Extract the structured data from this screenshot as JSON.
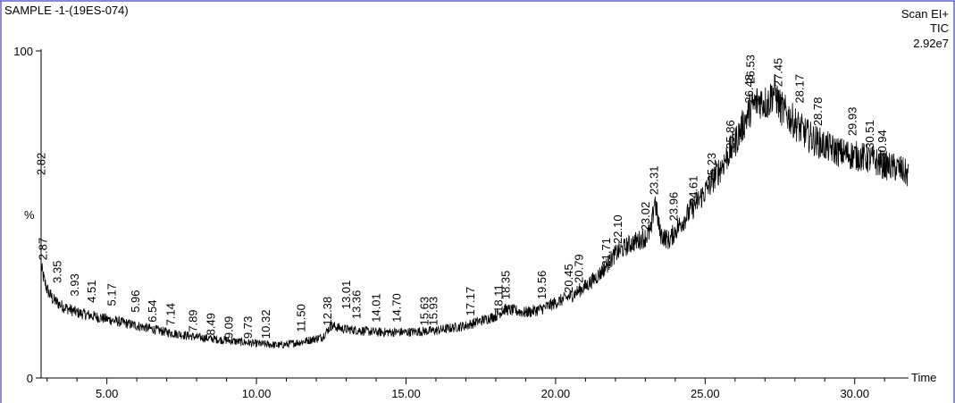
{
  "header": {
    "sample_label": "SAMPLE -1-(19ES-074)",
    "scan_label": "Scan EI+",
    "tic_label": "TIC",
    "intensity_label": "2.92e7"
  },
  "chart_data": {
    "type": "line",
    "title": "",
    "xlabel": "Time",
    "ylabel": "%",
    "xlim": [
      2.8,
      31.8
    ],
    "ylim": [
      0,
      100
    ],
    "x_ticks": [
      5.0,
      10.0,
      15.0,
      20.0,
      25.0,
      30.0
    ],
    "x_tick_labels": [
      "5.00",
      "10.00",
      "15.00",
      "20.00",
      "25.00",
      "30.00"
    ],
    "y_tick_labels": [
      "0",
      "100"
    ],
    "grid": false,
    "legend": "none",
    "line_color": "#000000",
    "frame_color": "#4040c0",
    "series": [
      {
        "x": [
          2.8,
          2.9,
          3.0,
          3.2,
          3.5,
          4.0,
          4.5,
          5.0,
          6.0,
          7.0,
          8.0,
          9.0,
          10.0,
          10.8,
          11.5,
          12.2,
          12.5,
          12.9,
          13.5,
          14.0,
          15.0,
          16.0,
          17.0,
          18.0,
          18.3,
          18.7,
          19.0,
          19.5,
          20.0,
          20.5,
          21.0,
          21.5,
          22.0,
          22.5,
          23.0,
          23.2,
          23.31,
          23.5,
          23.8,
          24.0,
          24.5,
          25.0,
          25.5,
          26.0,
          26.3,
          26.5,
          26.8,
          27.1,
          27.3,
          27.5,
          27.8,
          28.2,
          28.6,
          29.0,
          29.5,
          30.0,
          30.5,
          31.0,
          31.5,
          31.8
        ],
        "y": [
          34,
          30,
          27,
          24,
          22,
          20,
          19,
          18,
          16,
          14,
          12.5,
          11.5,
          10.5,
          10,
          11,
          12.5,
          16,
          15,
          14.5,
          14,
          14,
          14.5,
          16,
          19,
          21,
          20.5,
          20,
          21,
          23,
          25,
          28,
          32,
          38,
          41,
          43,
          45,
          55,
          44,
          42,
          45,
          51,
          57,
          64,
          72,
          78,
          82,
          85,
          84,
          88,
          83,
          80,
          76,
          73,
          71,
          69,
          68,
          67,
          65,
          64,
          62
        ]
      }
    ],
    "peak_labels": [
      {
        "x": 2.82,
        "y": 62,
        "label": "2.82"
      },
      {
        "x": 2.87,
        "y": 36,
        "label": "2.87"
      },
      {
        "x": 3.35,
        "y": 29,
        "label": "3.35"
      },
      {
        "x": 3.93,
        "y": 25,
        "label": "3.93"
      },
      {
        "x": 4.51,
        "y": 23,
        "label": "4.51"
      },
      {
        "x": 5.17,
        "y": 22,
        "label": "5.17"
      },
      {
        "x": 5.96,
        "y": 20,
        "label": "5.96"
      },
      {
        "x": 6.54,
        "y": 17,
        "label": "6.54"
      },
      {
        "x": 7.14,
        "y": 16,
        "label": "7.14"
      },
      {
        "x": 7.89,
        "y": 14,
        "label": "7.89"
      },
      {
        "x": 8.49,
        "y": 13,
        "label": "8.49"
      },
      {
        "x": 9.09,
        "y": 12,
        "label": "9.09"
      },
      {
        "x": 9.73,
        "y": 12,
        "label": "9.73"
      },
      {
        "x": 10.32,
        "y": 12,
        "label": "10.32"
      },
      {
        "x": 11.5,
        "y": 14,
        "label": "11.50"
      },
      {
        "x": 12.38,
        "y": 16,
        "label": "12.38"
      },
      {
        "x": 13.01,
        "y": 21,
        "label": "13.01"
      },
      {
        "x": 13.36,
        "y": 18,
        "label": "13.36"
      },
      {
        "x": 14.01,
        "y": 17,
        "label": "14.01"
      },
      {
        "x": 14.7,
        "y": 17,
        "label": "14.70"
      },
      {
        "x": 15.63,
        "y": 16,
        "label": "15.63"
      },
      {
        "x": 15.93,
        "y": 16,
        "label": "15.93"
      },
      {
        "x": 17.17,
        "y": 19,
        "label": "17.17"
      },
      {
        "x": 18.11,
        "y": 20,
        "label": "18.11"
      },
      {
        "x": 18.35,
        "y": 24,
        "label": "18.35"
      },
      {
        "x": 19.56,
        "y": 24,
        "label": "19.56"
      },
      {
        "x": 20.45,
        "y": 26,
        "label": "20.45"
      },
      {
        "x": 20.79,
        "y": 29,
        "label": "20.79"
      },
      {
        "x": 21.71,
        "y": 34,
        "label": "21.71"
      },
      {
        "x": 22.1,
        "y": 41,
        "label": "22.10"
      },
      {
        "x": 23.02,
        "y": 45,
        "label": "23.02"
      },
      {
        "x": 23.31,
        "y": 56,
        "label": "23.31"
      },
      {
        "x": 23.96,
        "y": 48,
        "label": "23.96"
      },
      {
        "x": 24.61,
        "y": 53,
        "label": "24.61"
      },
      {
        "x": 25.23,
        "y": 60,
        "label": "25.23"
      },
      {
        "x": 25.86,
        "y": 70,
        "label": "25.86"
      },
      {
        "x": 26.48,
        "y": 84,
        "label": "26.48"
      },
      {
        "x": 26.53,
        "y": 90,
        "label": "26.53"
      },
      {
        "x": 27.45,
        "y": 89,
        "label": "27.45"
      },
      {
        "x": 28.17,
        "y": 84,
        "label": "28.17"
      },
      {
        "x": 28.78,
        "y": 77,
        "label": "28.78"
      },
      {
        "x": 29.93,
        "y": 74,
        "label": "29.93"
      },
      {
        "x": 30.51,
        "y": 70,
        "label": "30.51"
      },
      {
        "x": 30.94,
        "y": 67,
        "label": "30.94"
      }
    ]
  }
}
